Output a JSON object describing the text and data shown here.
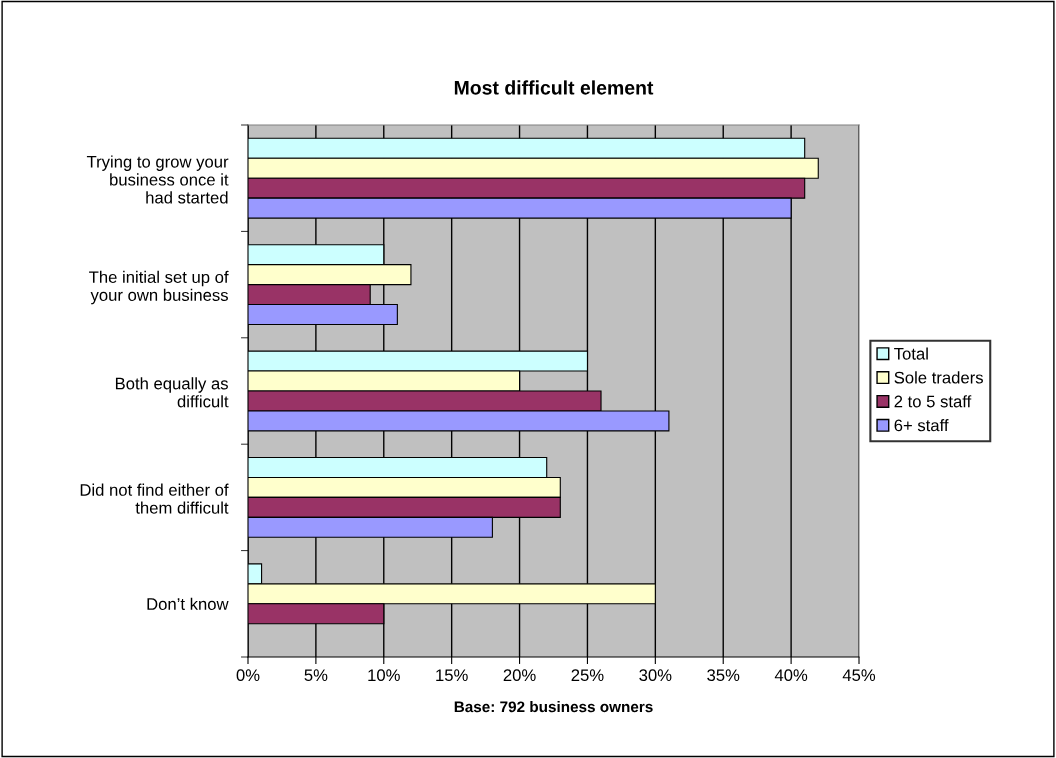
{
  "chart_data": {
    "type": "bar",
    "orientation": "horizontal",
    "title": "Most difficult element",
    "xlabel": "Base: 792 business owners",
    "categories": [
      "Trying to grow your\nbusiness once it\nhad started",
      "The initial set up of\nyour own business",
      "Both equally as\ndifficult",
      "Did not find either of\nthem difficult",
      "Don’t know"
    ],
    "series": [
      {
        "name": "Total",
        "color": "#ccffff",
        "values": [
          41,
          10,
          25,
          22,
          1
        ]
      },
      {
        "name": "Sole traders",
        "color": "#ffffcc",
        "values": [
          42,
          12,
          20,
          23,
          30
        ]
      },
      {
        "name": "2 to 5 staff",
        "color": "#993366",
        "values": [
          41,
          9,
          26,
          23,
          10
        ]
      },
      {
        "name": "6+ staff",
        "color": "#9999ff",
        "values": [
          40,
          11,
          31,
          18,
          null
        ]
      }
    ],
    "xlim": [
      0,
      45
    ],
    "xticks": [
      {
        "value": 0,
        "label": "0%"
      },
      {
        "value": 5,
        "label": "5%"
      },
      {
        "value": 10,
        "label": "10%"
      },
      {
        "value": 15,
        "label": "15%"
      },
      {
        "value": 20,
        "label": "20%"
      },
      {
        "value": 25,
        "label": "25%"
      },
      {
        "value": 30,
        "label": "30%"
      },
      {
        "value": 35,
        "label": "35%"
      },
      {
        "value": 40,
        "label": "40%"
      },
      {
        "value": 45,
        "label": "45%"
      }
    ],
    "grid": "x",
    "legend": "right"
  }
}
